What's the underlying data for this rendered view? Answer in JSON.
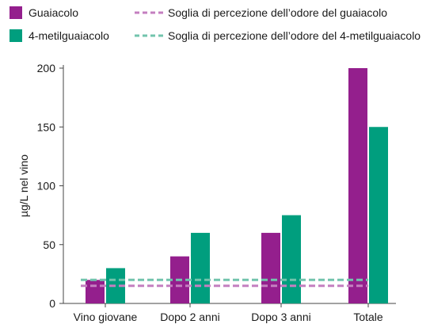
{
  "chart_data": {
    "type": "bar",
    "categories": [
      "Vino giovane",
      "Dopo 2 anni",
      "Dopo 3 anni",
      "Totale"
    ],
    "series": [
      {
        "name": "Guaiacolo",
        "color": "#941f8d",
        "values": [
          20,
          40,
          60,
          200
        ]
      },
      {
        "name": "4-metilguaiacolo",
        "color": "#009e7e",
        "values": [
          30,
          60,
          75,
          150
        ]
      }
    ],
    "thresholds": [
      {
        "name": "Soglia di percezione dell’odore del guaiacolo",
        "color": "#c47fc0",
        "value": 15
      },
      {
        "name": "Soglia di percezione dell’odore del 4-metilguaiacolo",
        "color": "#72c4ad",
        "value": 20
      }
    ],
    "ylabel": "µg/L nel vino",
    "xlabel": "",
    "ylim": [
      0,
      200
    ],
    "yticks": [
      0,
      50,
      100,
      150,
      200
    ],
    "grid": false,
    "legend_position": "top"
  }
}
